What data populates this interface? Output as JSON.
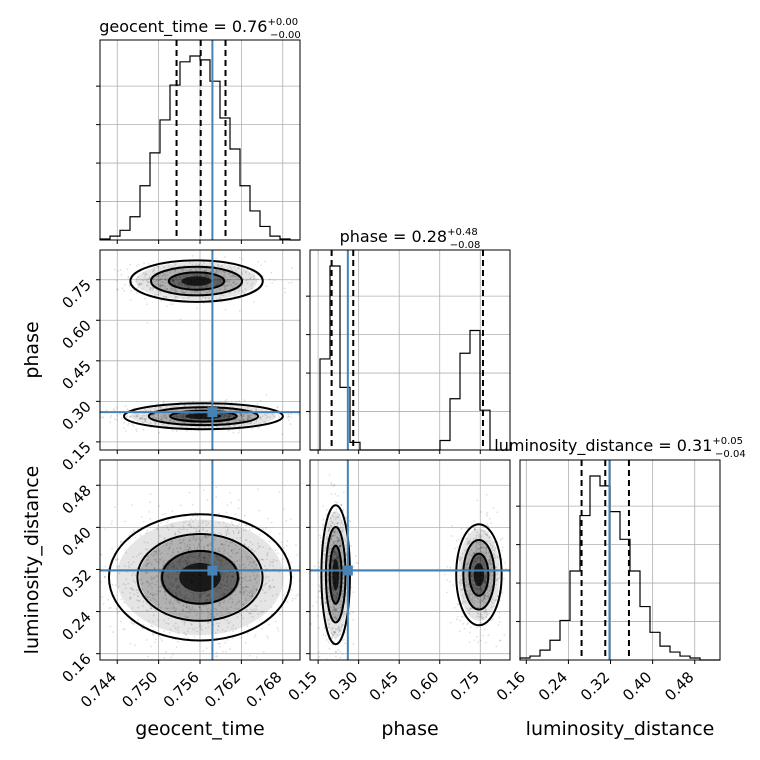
{
  "chart_data": {
    "type": "corner",
    "parameters": [
      "geocent_time",
      "phase",
      "luminosity_distance"
    ],
    "titles": {
      "geocent_time": {
        "label": "geocent_time",
        "median": "0.76",
        "plus": "+0.00",
        "minus": "−0.00"
      },
      "phase": {
        "label": "phase",
        "median": "0.28",
        "plus": "+0.48",
        "minus": "−0.08"
      },
      "luminosity_distance": {
        "label": "luminosity_distance",
        "median": "0.31",
        "plus": "+0.05",
        "minus": "−0.04"
      }
    },
    "axis_labels": {
      "geocent_time": "geocent_time",
      "phase": "phase",
      "luminosity_distance": "luminosity_distance"
    },
    "ranges": {
      "geocent_time": [
        0.7415,
        0.7705
      ],
      "phase": [
        0.12,
        0.86
      ],
      "luminosity_distance": [
        0.148,
        0.528
      ]
    },
    "ticks": {
      "geocent_time": [
        "0.744",
        "0.750",
        "0.756",
        "0.762",
        "0.768"
      ],
      "phase": [
        "0.15",
        "0.30",
        "0.45",
        "0.60",
        "0.75"
      ],
      "luminosity_distance": [
        "0.16",
        "0.24",
        "0.32",
        "0.40",
        "0.48"
      ]
    },
    "truths": {
      "geocent_time": 0.7578,
      "phase": 0.26,
      "luminosity_distance": 0.318
    },
    "truth_color": "#4682b4",
    "quantiles": {
      "geocent_time": [
        0.7526,
        0.7561,
        0.7597
      ],
      "phase": [
        0.2,
        0.28,
        0.76
      ],
      "luminosity_distance": [
        0.265,
        0.31,
        0.355
      ]
    },
    "histograms": {
      "geocent_time": {
        "edges": [
          0.7415,
          0.74295,
          0.7444,
          0.74585,
          0.7473,
          0.74875,
          0.7502,
          0.75165,
          0.7531,
          0.75455,
          0.756,
          0.75745,
          0.7589,
          0.76035,
          0.7618,
          0.76325,
          0.7647,
          0.76615,
          0.7676,
          0.76905,
          0.7705
        ],
        "counts": [
          0.005,
          0.02,
          0.05,
          0.12,
          0.28,
          0.45,
          0.62,
          0.8,
          0.92,
          0.95,
          0.93,
          0.82,
          0.63,
          0.47,
          0.28,
          0.15,
          0.07,
          0.02,
          0.005,
          0.0
        ]
      },
      "phase": {
        "edges": [
          0.12,
          0.157,
          0.194,
          0.231,
          0.268,
          0.305,
          0.342,
          0.379,
          0.416,
          0.453,
          0.49,
          0.527,
          0.564,
          0.601,
          0.638,
          0.675,
          0.712,
          0.749,
          0.786,
          0.823,
          0.86
        ],
        "counts": [
          0.0,
          0.48,
          0.97,
          0.33,
          0.04,
          0.0,
          0.0,
          0.0,
          0.0,
          0.0,
          0.0,
          0.0,
          0.0,
          0.05,
          0.27,
          0.51,
          0.63,
          0.21,
          0.0,
          0.0
        ]
      },
      "luminosity_distance": {
        "edges": [
          0.148,
          0.167,
          0.186,
          0.205,
          0.224,
          0.243,
          0.262,
          0.281,
          0.3,
          0.319,
          0.338,
          0.357,
          0.376,
          0.395,
          0.414,
          0.433,
          0.452,
          0.471,
          0.49,
          0.509,
          0.528
        ],
        "counts": [
          0.01,
          0.02,
          0.05,
          0.1,
          0.2,
          0.45,
          0.73,
          0.93,
          0.88,
          0.75,
          0.61,
          0.45,
          0.27,
          0.14,
          0.07,
          0.04,
          0.02,
          0.01,
          0.0,
          0.0
        ]
      }
    },
    "joint": {
      "phase_vs_geocent_time": {
        "modes": [
          {
            "x": 0.7555,
            "y": 0.745,
            "sx": 0.004,
            "sy": 0.032,
            "weight": 0.45
          },
          {
            "x": 0.7565,
            "y": 0.245,
            "sx": 0.0048,
            "sy": 0.02,
            "weight": 0.55
          }
        ]
      },
      "luminosity_distance_vs_geocent_time": {
        "modes": [
          {
            "x": 0.756,
            "y": 0.305,
            "sx": 0.0055,
            "sy": 0.05,
            "weight": 1.0
          }
        ]
      },
      "luminosity_distance_vs_phase": {
        "modes": [
          {
            "x": 0.215,
            "y": 0.31,
            "sx": 0.022,
            "sy": 0.055,
            "weight": 0.55
          },
          {
            "x": 0.745,
            "y": 0.31,
            "sx": 0.035,
            "sy": 0.04,
            "weight": 0.45
          }
        ]
      }
    },
    "grid": true
  }
}
